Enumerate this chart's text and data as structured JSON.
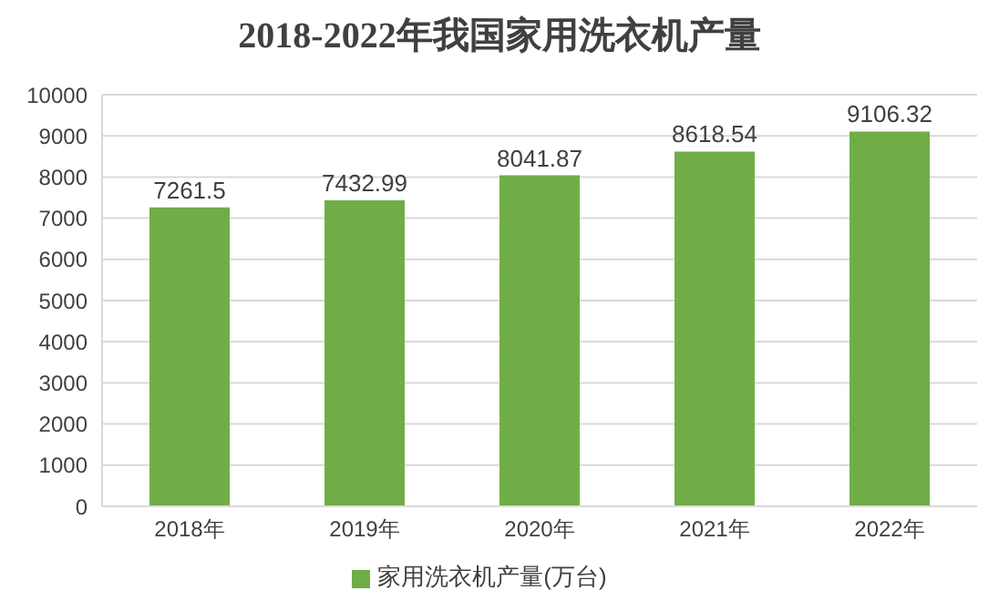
{
  "chart_data": {
    "type": "bar",
    "title": "2018-2022年我国家用洗衣机产量",
    "categories": [
      "2018年",
      "2019年",
      "2020年",
      "2021年",
      "2022年"
    ],
    "series": [
      {
        "name": "家用洗衣机产量(万台)",
        "color": "#70ad47",
        "values": [
          7261.5,
          7432.99,
          8041.87,
          8618.54,
          9106.32
        ]
      }
    ],
    "ylim": [
      0,
      10000
    ],
    "yticks": [
      0,
      1000,
      2000,
      3000,
      4000,
      5000,
      6000,
      7000,
      8000,
      9000,
      10000
    ],
    "grid": "y",
    "legend": "bottom",
    "data_labels": true
  }
}
